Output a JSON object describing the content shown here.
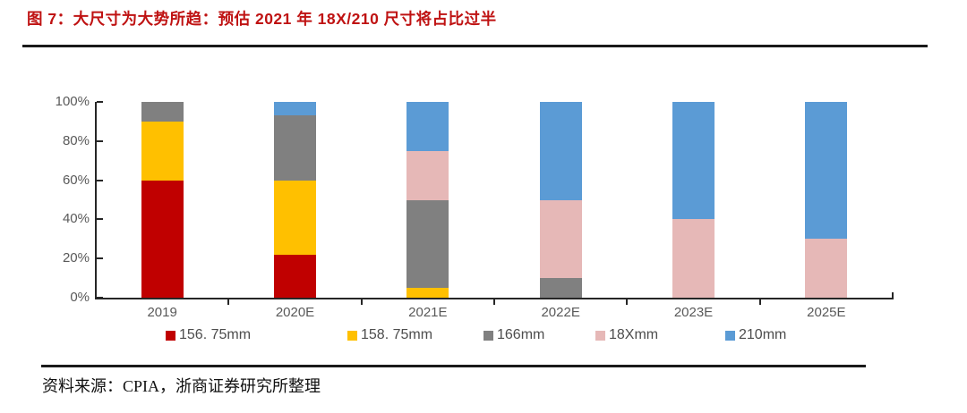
{
  "header": {
    "title": "图 7：大尺寸为大势所趋：预估 2021 年 18X/210 尺寸将占比过半",
    "accent_color": "#bf1212"
  },
  "chart_data": {
    "type": "bar",
    "stacked": true,
    "title": "",
    "xlabel": "",
    "ylabel": "",
    "ylim": [
      0,
      100
    ],
    "grid": false,
    "legend_position": "bottom",
    "categories": [
      "2019",
      "2020E",
      "2021E",
      "2022E",
      "2023E",
      "2025E"
    ],
    "yticks": [
      "0%",
      "20%",
      "40%",
      "60%",
      "80%",
      "100%"
    ],
    "series": [
      {
        "name": "156. 75mm",
        "color": "#c00000",
        "values": [
          60,
          22,
          0,
          0,
          0,
          0
        ]
      },
      {
        "name": "158. 75mm",
        "color": "#ffc000",
        "values": [
          30,
          38,
          5,
          0,
          0,
          0
        ]
      },
      {
        "name": "166mm",
        "color": "#808080",
        "values": [
          10,
          33,
          45,
          10,
          0,
          0
        ]
      },
      {
        "name": "18Xmm",
        "color": "#e6b8b7",
        "values": [
          0,
          0,
          25,
          40,
          40,
          30
        ]
      },
      {
        "name": "210mm",
        "color": "#5b9bd5",
        "values": [
          0,
          7,
          25,
          50,
          60,
          70
        ]
      }
    ]
  },
  "footer": {
    "source": "资料来源：CPIA，浙商证券研究所整理"
  }
}
